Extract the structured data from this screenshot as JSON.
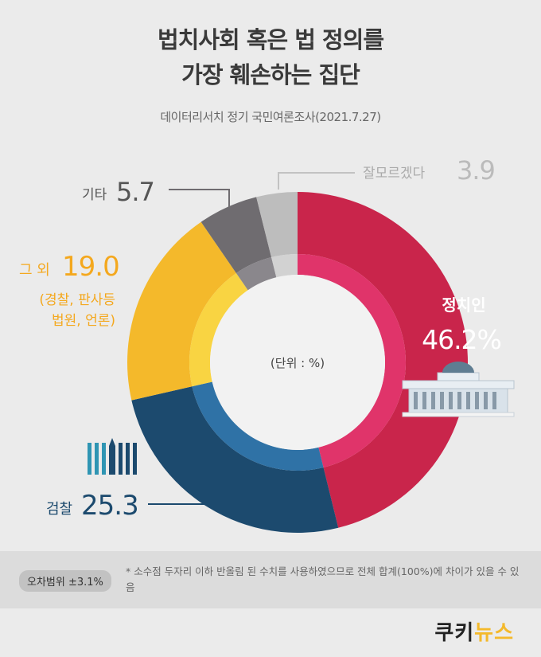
{
  "header": {
    "title_line1": "법치사회 혹은 법 정의를",
    "title_line2": "가장 훼손하는 집단",
    "source": "데이터리서치 정기 국민여론조사(2021.7.27)"
  },
  "chart_data": {
    "type": "pie",
    "style": "donut",
    "unit_label": "(단위 : %)",
    "slices": [
      {
        "label": "정치인",
        "value": 46.2,
        "value_text": "46.2%",
        "color": "#c9254b",
        "inner_color": "#e0346a"
      },
      {
        "label": "검찰",
        "value": 25.3,
        "value_text": "25.3",
        "color": "#1c4a6e",
        "inner_color": "#2f72a6"
      },
      {
        "label": "그 외",
        "value": 19.0,
        "value_text": "19.0",
        "sublabel_line1": "(경찰, 판사등",
        "sublabel_line2": "법원, 언론)",
        "color": "#f4b92b",
        "inner_color": "#f9d442"
      },
      {
        "label": "기타",
        "value": 5.7,
        "value_text": "5.7",
        "color": "#6f6c70",
        "inner_color": "#8a878c"
      },
      {
        "label": "잘모르겠다",
        "value": 3.9,
        "value_text": "3.9",
        "color": "#bdbdbd",
        "inner_color": "#d2d2d2"
      }
    ]
  },
  "footer": {
    "error_margin": "오차범위 ±3.1%",
    "note": "* 소수점 두자리 이하 반올림 된 수치를 사용하였으므로 전체 합계(100%)에 차이가 있을 수 있음"
  },
  "brand": {
    "part1": "쿠키",
    "part2": "뉴스"
  }
}
